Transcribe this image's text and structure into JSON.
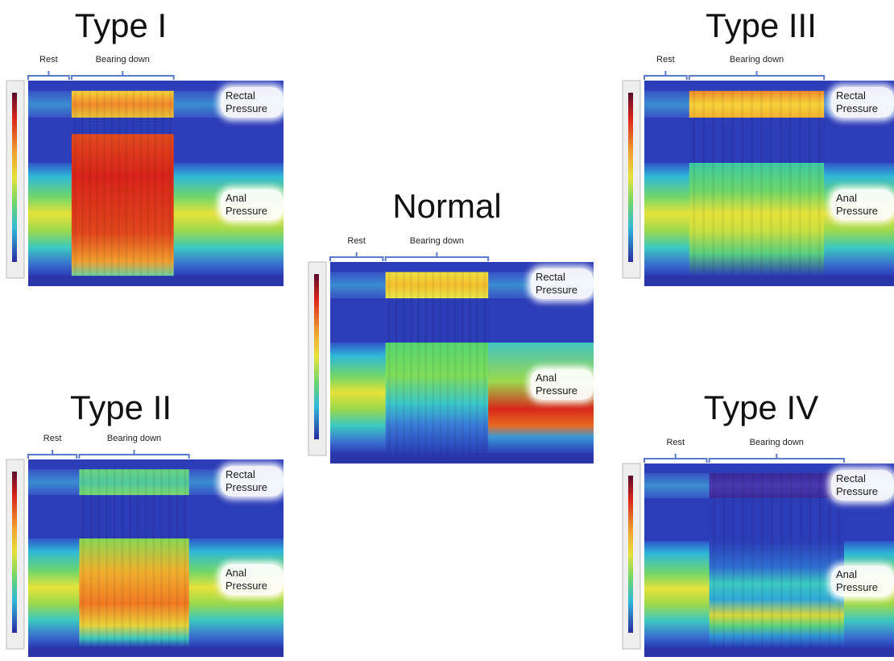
{
  "panels": [
    {
      "title": "Type I",
      "rest": "Rest",
      "bearing_down": "Bearing down",
      "rectal": "Rectal Pressure",
      "anal": "Anal Pressure"
    },
    {
      "title": "Normal",
      "rest": "Rest",
      "bearing_down": "Bearing down",
      "rectal": "Rectal Pressure",
      "anal": "Anal Pressure"
    },
    {
      "title": "Type III",
      "rest": "Rest",
      "bearing_down": "Bearing down",
      "rectal": "Rectal Pressure",
      "anal": "Anal Pressure"
    },
    {
      "title": "Type II",
      "rest": "Rest",
      "bearing_down": "Bearing down",
      "rectal": "Rectal Pressure",
      "anal": "Anal Pressure"
    },
    {
      "title": "Type IV",
      "rest": "Rest",
      "bearing_down": "Bearing down",
      "rectal": "Rectal Pressure",
      "anal": "Anal Pressure"
    }
  ]
}
